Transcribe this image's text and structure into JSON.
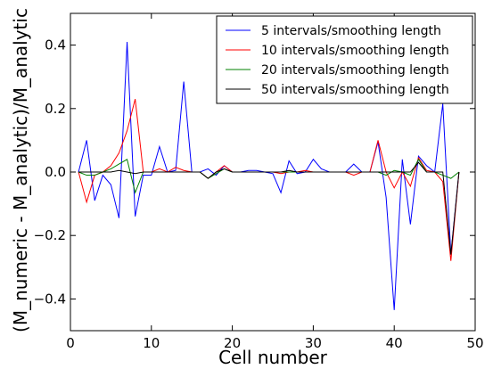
{
  "chart_data": {
    "type": "line",
    "title": "",
    "xlabel": "Cell number",
    "ylabel": "(M_numeric - M_analytic)/M_analytic",
    "xlim": [
      0,
      50
    ],
    "ylim": [
      -0.5,
      0.5
    ],
    "xticks": [
      0,
      10,
      20,
      30,
      40,
      50
    ],
    "yticks": [
      -0.4,
      -0.2,
      0.0,
      0.2,
      0.4
    ],
    "xtick_labels": [
      "0",
      "10",
      "20",
      "30",
      "40",
      "50"
    ],
    "ytick_labels": [
      "−0.4",
      "−0.2",
      "0.0",
      "0.2",
      "0.4"
    ],
    "grid": false,
    "legend_position": "top-right",
    "series": [
      {
        "name": "5 intervals/smoothing length",
        "color": "#0000ff",
        "x": [
          1,
          2,
          3,
          4,
          5,
          6,
          7,
          8,
          9,
          10,
          11,
          12,
          13,
          14,
          15,
          16,
          17,
          18,
          19,
          20,
          21,
          22,
          23,
          24,
          25,
          26,
          27,
          28,
          29,
          30,
          31,
          32,
          33,
          34,
          35,
          36,
          37,
          38,
          39,
          40,
          41,
          42,
          43,
          44,
          45,
          46,
          47,
          48
        ],
        "y": [
          0.0,
          0.1,
          -0.09,
          -0.01,
          -0.04,
          -0.145,
          0.41,
          -0.14,
          -0.01,
          -0.01,
          0.08,
          0.0,
          0.005,
          0.285,
          0.0,
          0.0,
          0.01,
          -0.01,
          0.02,
          0.0,
          0.0,
          0.005,
          0.005,
          0.0,
          -0.005,
          -0.065,
          0.035,
          -0.005,
          0.0,
          0.04,
          0.01,
          0.0,
          0.0,
          0.0,
          0.025,
          0.0,
          0.0,
          0.095,
          -0.08,
          -0.435,
          0.04,
          -0.165,
          0.05,
          0.02,
          0.0,
          0.215,
          -0.26,
          0.0
        ]
      },
      {
        "name": "10 intervals/smoothing length",
        "color": "#ff0000",
        "x": [
          1,
          2,
          3,
          4,
          5,
          6,
          7,
          8,
          9,
          10,
          11,
          12,
          13,
          14,
          15,
          16,
          17,
          18,
          19,
          20,
          21,
          22,
          23,
          24,
          25,
          26,
          27,
          28,
          29,
          30,
          31,
          32,
          33,
          34,
          35,
          36,
          37,
          38,
          39,
          40,
          41,
          42,
          43,
          44,
          45,
          46,
          47,
          48
        ],
        "y": [
          0.0,
          -0.095,
          -0.01,
          0.0,
          0.02,
          0.06,
          0.13,
          0.23,
          0.0,
          0.0,
          0.01,
          0.0,
          0.015,
          0.005,
          0.0,
          0.0,
          -0.02,
          0.0,
          0.02,
          0.0,
          0.0,
          0.0,
          0.0,
          0.0,
          0.0,
          -0.005,
          0.0,
          0.0,
          0.005,
          0.0,
          0.0,
          0.0,
          0.0,
          0.0,
          -0.01,
          0.0,
          0.0,
          0.1,
          0.0,
          -0.05,
          0.0,
          -0.045,
          0.045,
          0.005,
          0.0,
          -0.03,
          -0.28,
          0.0
        ]
      },
      {
        "name": "20 intervals/smoothing length",
        "color": "#008000",
        "x": [
          1,
          2,
          3,
          4,
          5,
          6,
          7,
          8,
          9,
          10,
          11,
          12,
          13,
          14,
          15,
          16,
          17,
          18,
          19,
          20,
          21,
          22,
          23,
          24,
          25,
          26,
          27,
          28,
          29,
          30,
          31,
          32,
          33,
          34,
          35,
          36,
          37,
          38,
          39,
          40,
          41,
          42,
          43,
          44,
          45,
          46,
          47,
          48
        ],
        "y": [
          0.0,
          -0.01,
          -0.01,
          0.0,
          0.01,
          0.025,
          0.04,
          -0.065,
          0.0,
          0.0,
          0.0,
          0.0,
          0.0,
          0.0,
          0.0,
          0.0,
          -0.02,
          -0.005,
          0.01,
          0.0,
          0.0,
          0.0,
          0.0,
          0.0,
          0.0,
          0.0,
          0.0,
          0.0,
          0.0,
          0.0,
          0.0,
          0.0,
          0.0,
          0.0,
          0.0,
          0.0,
          0.0,
          0.0,
          -0.01,
          0.005,
          0.0,
          -0.01,
          0.04,
          0.0,
          0.0,
          -0.01,
          -0.02,
          0.0
        ]
      },
      {
        "name": "50 intervals/smoothing length",
        "color": "#000000",
        "x": [
          1,
          2,
          3,
          4,
          5,
          6,
          7,
          8,
          9,
          10,
          11,
          12,
          13,
          14,
          15,
          16,
          17,
          18,
          19,
          20,
          21,
          22,
          23,
          24,
          25,
          26,
          27,
          28,
          29,
          30,
          31,
          32,
          33,
          34,
          35,
          36,
          37,
          38,
          39,
          40,
          41,
          42,
          43,
          44,
          45,
          46,
          47,
          48
        ],
        "y": [
          0.0,
          0.0,
          0.0,
          0.0,
          0.0,
          0.005,
          0.0,
          -0.005,
          0.0,
          0.0,
          0.0,
          0.0,
          0.0,
          0.0,
          0.0,
          0.0,
          -0.02,
          0.0,
          0.01,
          0.0,
          0.0,
          0.0,
          0.0,
          0.0,
          0.0,
          0.0,
          0.005,
          0.0,
          0.0,
          0.0,
          0.0,
          0.0,
          0.0,
          0.0,
          0.0,
          0.0,
          0.0,
          0.0,
          0.0,
          0.0,
          0.0,
          0.0,
          0.03,
          0.0,
          0.0,
          0.0,
          -0.26,
          0.0
        ]
      }
    ]
  }
}
